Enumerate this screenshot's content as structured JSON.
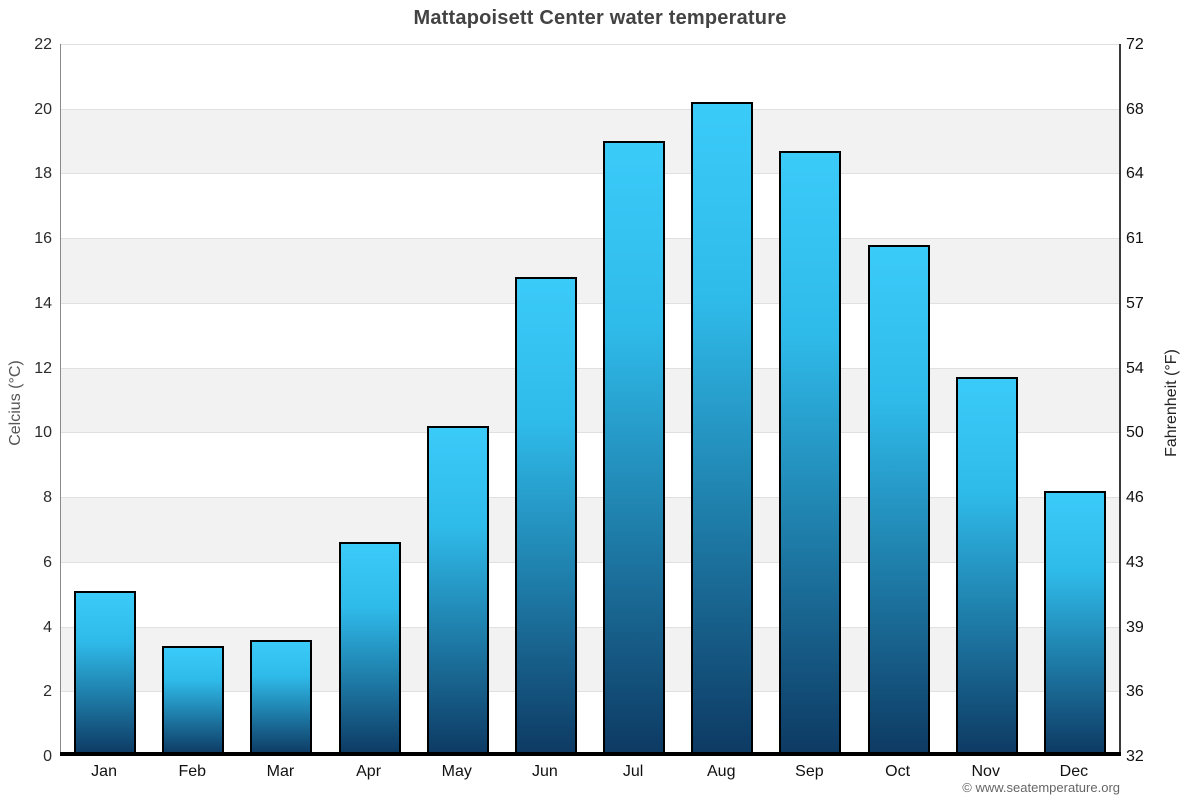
{
  "title": "Mattapoisett Center water temperature",
  "footer": {
    "attribution": "© www.seatemperature.org"
  },
  "chart_data": {
    "type": "bar",
    "title": "Mattapoisett Center water temperature",
    "categories": [
      "Jan",
      "Feb",
      "Mar",
      "Apr",
      "May",
      "Jun",
      "Jul",
      "Aug",
      "Sep",
      "Oct",
      "Nov",
      "Dec"
    ],
    "values": [
      5.1,
      3.4,
      3.6,
      6.6,
      10.2,
      14.8,
      19.0,
      20.2,
      18.7,
      15.8,
      11.7,
      8.2
    ],
    "unit": "°C",
    "ylabel_left": "Celcius (°C)",
    "ylabel_right": "Fahrenheit (°F)",
    "ylim_c": [
      0,
      22
    ],
    "yticks_c": [
      0,
      2,
      4,
      6,
      8,
      10,
      12,
      14,
      16,
      18,
      20,
      22
    ],
    "yticks_f": [
      32,
      36,
      39,
      43,
      46,
      50,
      54,
      57,
      61,
      64,
      68,
      72
    ],
    "xlabel": "",
    "grid": "alternating-bands",
    "legend": "none",
    "colors": {
      "bar_top": "#3bcbf9",
      "bar_bottom": "#0d3a63",
      "bar_border": "#000000",
      "band_gray": "#f2f2f2",
      "band_white": "#ffffff",
      "gridline": "#e0e0e0",
      "baseline": "#000000",
      "title_text": "#434343"
    }
  }
}
